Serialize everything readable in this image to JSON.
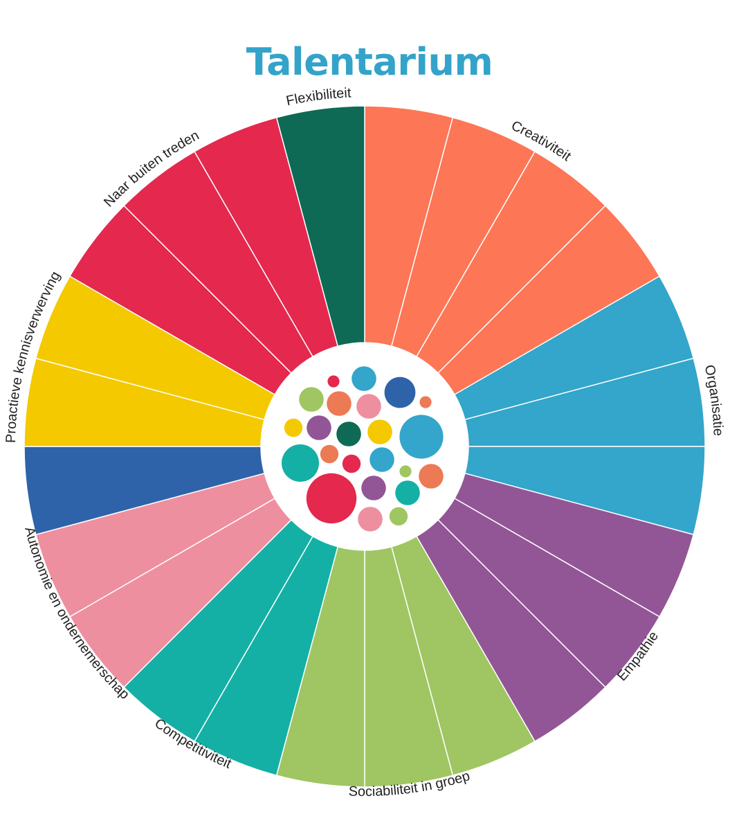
{
  "title": "Talentarium",
  "colors": {
    "title": "#34a3c9",
    "background": "#ffffff",
    "separator": "#ffffff"
  },
  "chart_data": {
    "type": "radial-bar",
    "title": "Talentarium",
    "categories": [
      {
        "label": "Creativiteit",
        "color": "#fd7656",
        "segments": 4
      },
      {
        "label": "Organisatie",
        "color": "#34a5cb",
        "segments": 3
      },
      {
        "label": "Empathie",
        "color": "#925697",
        "segments": 3
      },
      {
        "label": "Sociabiliteit in groep",
        "color": "#9fc662",
        "segments": 3
      },
      {
        "label": "Competitiviteit",
        "color": "#14b0a5",
        "segments": 2
      },
      {
        "label": "Autonomie en ondernemerschap",
        "color": "#ee8fa0",
        "segments": 2
      },
      {
        "label": "",
        "color": "#2f63a9",
        "segments": 1
      },
      {
        "label": "Proactieve kennisverwerving",
        "color": "#f4c900",
        "segments": 2
      },
      {
        "label": "Naar buiten treden",
        "color": "#e4284e",
        "segments": 3
      },
      {
        "label": "Flexibiliteit",
        "color": "#0e6a55",
        "segments": 1
      }
    ],
    "segment_count": 24,
    "values": "equal",
    "center_bubbles": [
      {
        "color": "#e4284e",
        "size": 1
      },
      {
        "color": "#34a5cb",
        "size": 3
      },
      {
        "color": "#2f63a9",
        "size": 4
      },
      {
        "color": "#9fc662",
        "size": 3
      },
      {
        "color": "#ec7a55",
        "size": 3
      },
      {
        "color": "#ee8fa0",
        "size": 3
      },
      {
        "color": "#ec7a55",
        "size": 1
      },
      {
        "color": "#f4c900",
        "size": 2
      },
      {
        "color": "#925697",
        "size": 3
      },
      {
        "color": "#0e6a55",
        "size": 3
      },
      {
        "color": "#f4c900",
        "size": 3
      },
      {
        "color": "#34a5cb",
        "size": 6
      },
      {
        "color": "#14b0a5",
        "size": 5
      },
      {
        "color": "#ec7a55",
        "size": 2
      },
      {
        "color": "#e4284e",
        "size": 2
      },
      {
        "color": "#34a5cb",
        "size": 3
      },
      {
        "color": "#9fc662",
        "size": 1
      },
      {
        "color": "#ec7a55",
        "size": 3
      },
      {
        "color": "#e4284e",
        "size": 7
      },
      {
        "color": "#925697",
        "size": 3
      },
      {
        "color": "#14b0a5",
        "size": 3
      },
      {
        "color": "#ee8fa0",
        "size": 3
      },
      {
        "color": "#9fc662",
        "size": 2
      }
    ]
  }
}
